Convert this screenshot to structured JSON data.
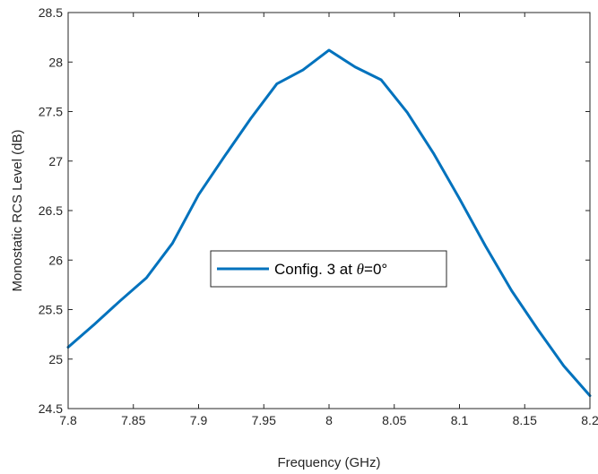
{
  "chart_data": {
    "type": "line",
    "title": "",
    "xlabel": "Frequency (GHz)",
    "ylabel": "Monostatic RCS Level (dB)",
    "xlim": [
      7.8,
      8.2
    ],
    "ylim": [
      24.5,
      28.5
    ],
    "xticks": [
      7.8,
      7.85,
      7.9,
      7.95,
      8.0,
      8.05,
      8.1,
      8.15,
      8.2
    ],
    "xtick_labels": [
      "7.8",
      "7.85",
      "7.9",
      "7.95",
      "8",
      "8.05",
      "8.1",
      "8.15",
      "8.2"
    ],
    "yticks": [
      24.5,
      25,
      25.5,
      26,
      26.5,
      27,
      27.5,
      28,
      28.5
    ],
    "ytick_labels": [
      "24.5",
      "25",
      "25.5",
      "26",
      "26.5",
      "27",
      "27.5",
      "28",
      "28.5"
    ],
    "grid": false,
    "legend_position": "center",
    "series": [
      {
        "legend_prefix": "Config. 3 at ",
        "legend_symbol": "θ",
        "legend_suffix": "=0°",
        "color": "#0072BD",
        "x": [
          7.8,
          7.82,
          7.84,
          7.86,
          7.88,
          7.9,
          7.92,
          7.94,
          7.96,
          7.98,
          8.0,
          8.02,
          8.04,
          8.06,
          8.08,
          8.1,
          8.12,
          8.14,
          8.16,
          8.18,
          8.2
        ],
        "y": [
          25.12,
          25.35,
          25.59,
          25.82,
          26.17,
          26.66,
          27.05,
          27.43,
          27.78,
          27.92,
          28.12,
          27.95,
          27.82,
          27.49,
          27.08,
          26.62,
          26.14,
          25.69,
          25.3,
          24.93,
          24.63
        ]
      }
    ]
  }
}
